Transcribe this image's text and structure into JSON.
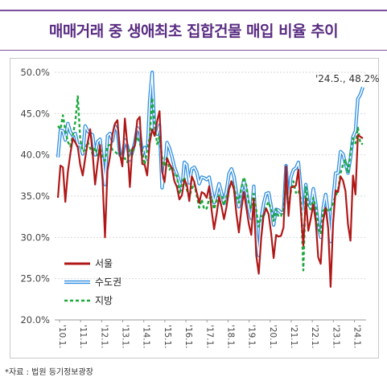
{
  "title": "매매거래 중 생애최초 집합건물 매입 비율 추이",
  "source": "*자료 : 법원 등기정보광장",
  "chart_data": {
    "type": "line",
    "title": "매매거래 중 생애최초 집합건물 매입 비율 추이",
    "ylim": [
      20.0,
      50.0
    ],
    "yticks": [
      "50.0%",
      "45.0%",
      "40.0%",
      "35.0%",
      "30.0%",
      "25.0%",
      "20.0%"
    ],
    "ytick_values": [
      50,
      45,
      40,
      35,
      30,
      25,
      20
    ],
    "xticks": [
      "'10.1.",
      "'11.1.",
      "'12.1.",
      "'13.1.",
      "'14.1.",
      "'15.1.",
      "'16.1.",
      "'17.1.",
      "'18.1.",
      "'19.1.",
      "'20.1.",
      "'21.1.",
      "'22.1.",
      "'23.1.",
      "'24.1."
    ],
    "annotation": "'24.5., 48.2%",
    "legend_position": "bottom-left",
    "series": [
      {
        "name": "서울",
        "color": "#b01818",
        "values": [
          34.8,
          38.7,
          38.5,
          34.3,
          37.9,
          40.1,
          42.0,
          41.5,
          40.9,
          38.8,
          37.5,
          39.6,
          41.5,
          43.1,
          40.2,
          36.4,
          39.0,
          41.2,
          36.9,
          30.0,
          38.1,
          39.8,
          42.5,
          43.8,
          44.2,
          40.1,
          38.6,
          44.4,
          41.2,
          36.1,
          40.7,
          41.1,
          44.2,
          44.6,
          38.9,
          38.8,
          37.5,
          41.4,
          43.1,
          42.3,
          44.1,
          45.3,
          38.0,
          36.7,
          39.6,
          38.9,
          38.4,
          36.8,
          36.1,
          34.6,
          35.1,
          37.0,
          36.4,
          34.4,
          37.4,
          36.7,
          35.4,
          34.2,
          35.5,
          35.3,
          34.8,
          36.2,
          33.3,
          31.0,
          32.8,
          34.9,
          33.7,
          32.2,
          33.7,
          35.8,
          36.8,
          35.8,
          32.8,
          30.6,
          33.4,
          35.5,
          33.6,
          31.6,
          30.3,
          34.7,
          27.8,
          25.6,
          30.0,
          32.7,
          33.5,
          32.8,
          30.5,
          27.5,
          30.3,
          30.1,
          30.2,
          31.2,
          38.6,
          32.6,
          36.1,
          36.1,
          36.3,
          38.2,
          33.1,
          29.0,
          34.7,
          30.8,
          32.3,
          34.0,
          31.9,
          27.6,
          26.8,
          32.0,
          33.6,
          31.1,
          24.0,
          31.7,
          35.7,
          35.5,
          37.4,
          36.9,
          35.6,
          31.6,
          29.6,
          37.5,
          35.2,
          42.4,
          42.2,
          42.0
        ]
      },
      {
        "name": "수도권",
        "color": "#2f8ee0",
        "values": [
          39.7,
          43.0,
          42.9,
          41.8,
          43.8,
          42.8,
          42.3,
          42.6,
          41.2,
          41.2,
          40.1,
          43.5,
          42.9,
          42.6,
          42.4,
          40.0,
          41.6,
          41.9,
          39.2,
          36.4,
          42.3,
          42.6,
          41.7,
          43.5,
          42.9,
          40.0,
          39.7,
          41.8,
          41.1,
          39.4,
          40.3,
          41.5,
          43.3,
          42.8,
          40.0,
          40.9,
          39.5,
          46.6,
          50.0,
          42.8,
          42.5,
          43.6,
          36.0,
          38.1,
          41.5,
          40.8,
          39.8,
          38.5,
          37.7,
          36.7,
          35.8,
          39.1,
          38.8,
          36.6,
          38.3,
          38.5,
          37.9,
          36.5,
          37.3,
          37.2,
          37.0,
          37.3,
          35.7,
          34.2,
          35.3,
          36.5,
          35.4,
          34.1,
          35.7,
          37.7,
          38.3,
          37.4,
          35.4,
          33.7,
          35.5,
          36.9,
          35.6,
          33.5,
          32.3,
          36.2,
          30.4,
          27.8,
          32.4,
          34.1,
          35.3,
          35.4,
          33.8,
          31.5,
          33.4,
          33.3,
          33.0,
          33.0,
          38.7,
          34.1,
          37.3,
          38.2,
          38.4,
          39.1,
          35.9,
          31.6,
          36.4,
          34.0,
          33.6,
          35.9,
          34.1,
          31.4,
          30.0,
          33.6,
          35.2,
          32.9,
          29.5,
          34.6,
          37.8,
          37.8,
          40.4,
          40.1,
          38.9,
          37.8,
          39.6,
          42.2,
          42.9,
          46.8,
          47.3,
          48.2
        ]
      },
      {
        "name": "지방",
        "color": "#1aa83a",
        "values": [
          43.5,
          43.1,
          44.8,
          43.0,
          41.6,
          41.0,
          42.4,
          44.0,
          47.1,
          41.9,
          40.4,
          40.6,
          41.6,
          40.8,
          40.1,
          40.9,
          39.9,
          40.9,
          39.6,
          39.3,
          41.1,
          41.2,
          40.6,
          40.4,
          40.1,
          40.3,
          39.3,
          39.6,
          39.1,
          40.6,
          40.0,
          41.2,
          42.2,
          41.4,
          40.5,
          38.8,
          40.5,
          42.1,
          46.9,
          43.6,
          41.3,
          42.2,
          39.7,
          38.6,
          39.8,
          38.2,
          38.6,
          37.3,
          37.5,
          35.2,
          36.6,
          37.3,
          35.8,
          34.9,
          35.9,
          36.5,
          35.0,
          33.6,
          34.6,
          33.4,
          33.5,
          34.7,
          34.9,
          33.4,
          34.5,
          35.1,
          35.1,
          33.9,
          35.0,
          35.8,
          36.8,
          36.2,
          34.9,
          34.2,
          36.0,
          37.3,
          36.3,
          34.2,
          33.5,
          35.3,
          33.3,
          31.3,
          32.6,
          32.4,
          33.8,
          34.3,
          33.3,
          32.0,
          33.4,
          32.5,
          32.6,
          33.4,
          36.1,
          33.8,
          35.6,
          36.8,
          35.4,
          35.7,
          34.6,
          26.0,
          36.1,
          33.6,
          33.4,
          34.8,
          33.6,
          31.2,
          30.4,
          33.2,
          33.6,
          33.1,
          33.4,
          34.2,
          35.0,
          35.7,
          37.8,
          38.8,
          39.4,
          37.8,
          40.3,
          42.0,
          41.4,
          43.3,
          41.4,
          41.3
        ]
      }
    ]
  }
}
